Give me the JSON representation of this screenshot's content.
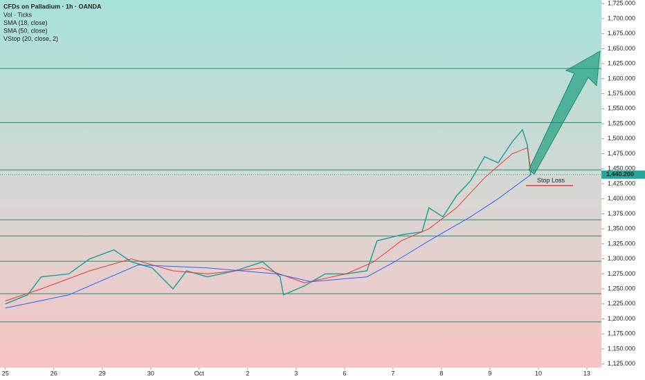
{
  "chart_data": {
    "type": "line",
    "title": "CFDs on Palladium · 1h · OANDA",
    "legend": [
      "Vol · Ticks",
      "SMA (18, close)",
      "SMA (50, close)",
      "VStop (20, close, 2)"
    ],
    "series": [
      {
        "color": "#26a69a",
        "x": [
          0,
          0.46,
          0.74,
          1.31,
          1.74,
          2.24,
          2.6,
          3.03,
          3.46,
          3.74,
          4.17,
          4.74,
          5.31,
          5.67,
          5.74,
          6.17,
          6.6,
          7.03,
          7.46,
          7.67,
          8.17,
          8.6,
          8.74,
          9.03,
          9.31,
          9.6,
          9.89,
          10.17,
          10.46,
          10.67,
          10.77,
          10.84
        ],
        "values": [
          1225,
          1240,
          1270,
          1275,
          1300,
          1315,
          1295,
          1285,
          1250,
          1280,
          1270,
          1280,
          1295,
          1270,
          1240,
          1255,
          1275,
          1275,
          1280,
          1330,
          1340,
          1345,
          1385,
          1370,
          1405,
          1430,
          1470,
          1460,
          1495,
          1515,
          1490,
          1440
        ]
      },
      {
        "color": "#e53935",
        "x": [
          0,
          0.74,
          1.74,
          2.6,
          3.46,
          4.17,
          5.31,
          6.17,
          7.03,
          7.6,
          8.17,
          8.74,
          9.31,
          9.89,
          10.46,
          10.77,
          10.84
        ],
        "values": [
          1230,
          1250,
          1280,
          1300,
          1280,
          1275,
          1285,
          1260,
          1275,
          1295,
          1330,
          1350,
          1385,
          1435,
          1475,
          1485,
          1450
        ]
      },
      {
        "color": "#2962ff",
        "x": [
          0,
          1.31,
          2.74,
          4.17,
          5.6,
          6.31,
          7.46,
          8.03,
          8.74,
          9.6,
          10.17,
          10.84
        ],
        "values": [
          1218,
          1240,
          1290,
          1285,
          1275,
          1262,
          1270,
          1295,
          1330,
          1370,
          1400,
          1440
        ]
      }
    ],
    "levels": [
      1617,
      1527,
      1448,
      1365,
      1338,
      1296,
      1242,
      1195
    ],
    "level_color": "#1e8c6e",
    "last_price": {
      "value": 1440.2,
      "label": "1,440.200"
    },
    "stop_loss": {
      "value": 1422,
      "label": "Stop Loss"
    },
    "xlim": [
      -0.11,
      12.3
    ],
    "xticks": [
      {
        "value": 0,
        "label": "25"
      },
      {
        "value": 1,
        "label": "26"
      },
      {
        "value": 2,
        "label": "29"
      },
      {
        "value": 3,
        "label": "30"
      },
      {
        "value": 4,
        "label": "Oct"
      },
      {
        "value": 5,
        "label": "2"
      },
      {
        "value": 6,
        "label": "3"
      },
      {
        "value": 7,
        "label": "6"
      },
      {
        "value": 8,
        "label": "7"
      },
      {
        "value": 9,
        "label": "8"
      },
      {
        "value": 10,
        "label": "9"
      },
      {
        "value": 11,
        "label": "10"
      },
      {
        "value": 12,
        "label": "13"
      }
    ],
    "ylim": [
      1119,
      1731
    ],
    "yticks": [
      {
        "value": 1125,
        "label": "1,125.000"
      },
      {
        "value": 1150,
        "label": "1,150.000"
      },
      {
        "value": 1175,
        "label": "1,175.000"
      },
      {
        "value": 1200,
        "label": "1,200.000"
      },
      {
        "value": 1225,
        "label": "1,225.000"
      },
      {
        "value": 1250,
        "label": "1,250.000"
      },
      {
        "value": 1275,
        "label": "1,275.000"
      },
      {
        "value": 1300,
        "label": "1,300.000"
      },
      {
        "value": 1325,
        "label": "1,325.000"
      },
      {
        "value": 1350,
        "label": "1,350.000"
      },
      {
        "value": 1375,
        "label": "1,375.000"
      },
      {
        "value": 1400,
        "label": "1,400.000"
      },
      {
        "value": 1425,
        "label": "1,425.000"
      },
      {
        "value": 1450,
        "label": "1,450.000"
      },
      {
        "value": 1475,
        "label": "1,475.000"
      },
      {
        "value": 1500,
        "label": "1,500.000"
      },
      {
        "value": 1525,
        "label": "1,525.000"
      },
      {
        "value": 1550,
        "label": "1,550.000"
      },
      {
        "value": 1575,
        "label": "1,575.000"
      },
      {
        "value": 1600,
        "label": "1,600.000"
      },
      {
        "value": 1625,
        "label": "1,625.000"
      },
      {
        "value": 1650,
        "label": "1,650.000"
      },
      {
        "value": 1675,
        "label": "1,675.000"
      },
      {
        "value": 1700,
        "label": "1,700.000"
      },
      {
        "value": 1725,
        "label": "1,725.000"
      }
    ]
  }
}
